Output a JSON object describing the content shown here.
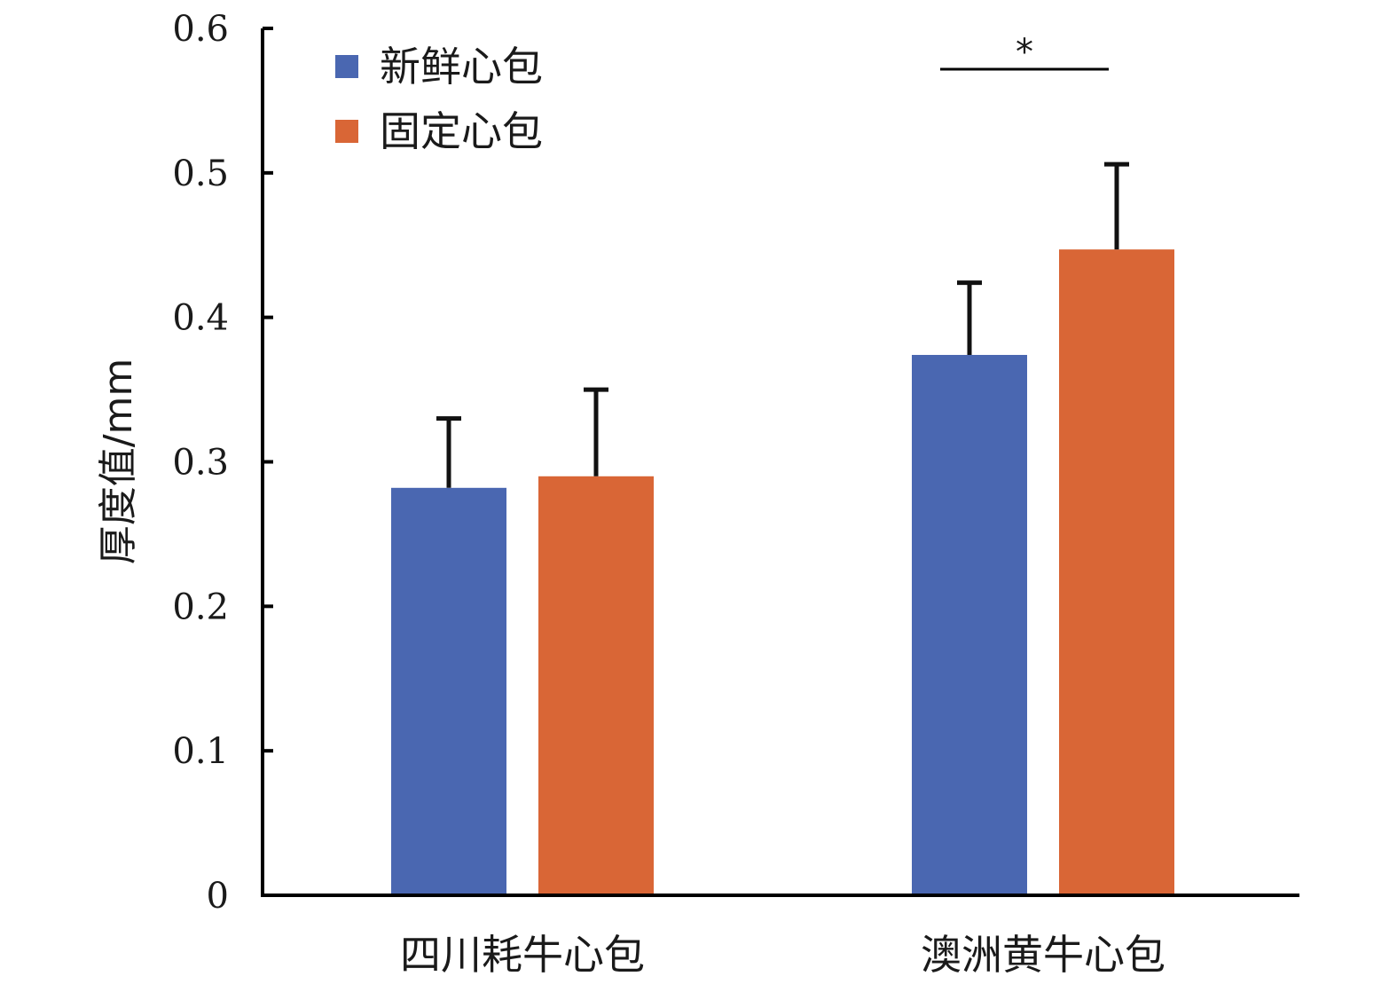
{
  "chart_data": {
    "type": "bar",
    "categories": [
      "四川耗牛心包",
      "澳洲黄牛心包"
    ],
    "series": [
      {
        "name": "新鲜心包",
        "color": "#4a67b1",
        "values": [
          0.282,
          0.374
        ],
        "errors": [
          0.048,
          0.05
        ]
      },
      {
        "name": "固定心包",
        "color": "#d96636",
        "values": [
          0.29,
          0.447
        ],
        "errors": [
          0.06,
          0.059
        ]
      }
    ],
    "title": "",
    "xlabel": "",
    "ylabel": "厚度值/mm",
    "ylim": [
      0,
      0.6
    ],
    "yticks": [
      "0",
      "0.1",
      "0.2",
      "0.3",
      "0.4",
      "0.5",
      "0.6"
    ],
    "grid": false,
    "legend_position": "top-left",
    "significance": {
      "category": "澳洲黄牛心包",
      "label": "*"
    }
  }
}
